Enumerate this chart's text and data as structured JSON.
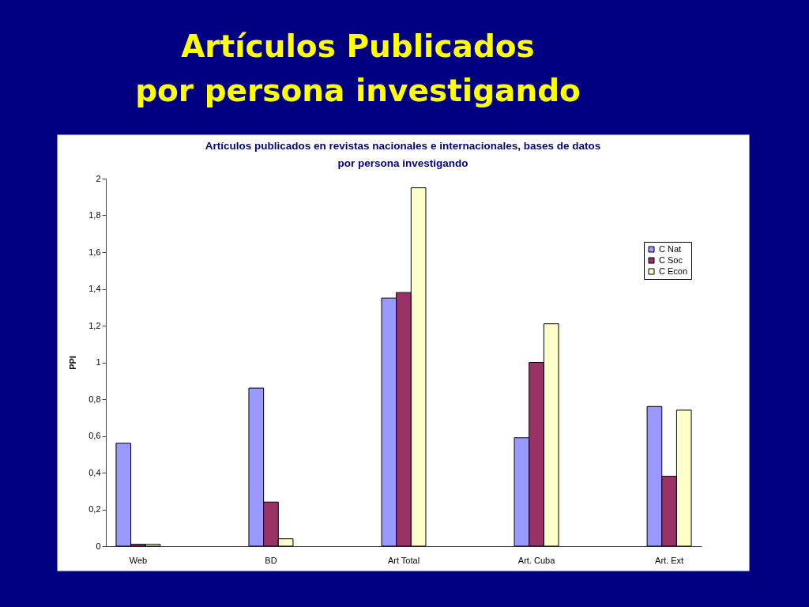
{
  "chart_data": {
    "type": "bar",
    "title": "Artículos Publicados\npor persona investigando",
    "subtitle": "Artículos publicados en revistas nacionales e internacionales, bases de datos\npor persona investigando",
    "ylabel": "PPI",
    "categories": [
      "Web",
      "BD",
      "Art Total",
      "Art. Cuba",
      "Art. Ext"
    ],
    "series": [
      {
        "name": "C Nat",
        "color": "#9999ff",
        "values": [
          0.56,
          0.86,
          1.35,
          0.59,
          0.76
        ]
      },
      {
        "name": "C Soc",
        "color": "#993366",
        "values": [
          0.01,
          0.24,
          1.38,
          1.0,
          0.38
        ]
      },
      {
        "name": "C Econ",
        "color": "#ffffcc",
        "values": [
          0.01,
          0.04,
          1.95,
          1.21,
          0.74
        ]
      }
    ],
    "ylim": [
      0,
      2
    ],
    "yticks": [
      0,
      {
        "value": 0.2,
        "label": "0,2"
      },
      {
        "value": 0.4,
        "label": "0,4"
      },
      {
        "value": 0.6,
        "label": "0,6"
      },
      {
        "value": 0.8,
        "label": "0,8"
      },
      1,
      {
        "value": 1.2,
        "label": "1,2"
      },
      {
        "value": 1.4,
        "label": "1,4"
      },
      {
        "value": 1.6,
        "label": "1,6"
      },
      {
        "value": 1.8,
        "label": "1,8"
      },
      2
    ],
    "legend": "top right"
  }
}
